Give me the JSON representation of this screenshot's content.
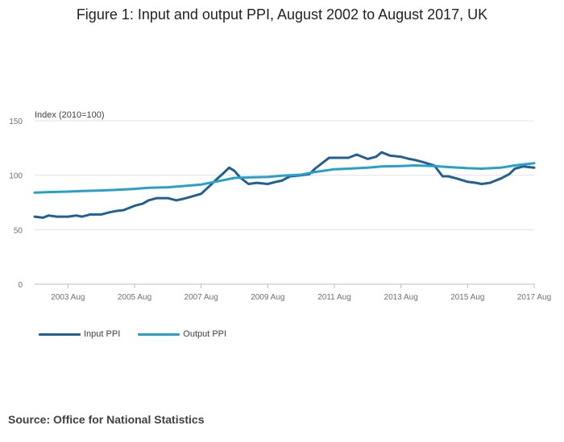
{
  "chart_data": {
    "type": "line",
    "title": "Figure 1: Input and output PPI, August 2002 to August 2017, UK",
    "ylabel": "Index (2010=100)",
    "xlabel": "",
    "ylim": [
      0,
      150
    ],
    "yticks": [
      0,
      50,
      100,
      150
    ],
    "xlim": [
      2002.58,
      2017.58
    ],
    "xticks": [
      {
        "value": 2003.58,
        "label": "2003 Aug"
      },
      {
        "value": 2005.58,
        "label": "2005 Aug"
      },
      {
        "value": 2007.58,
        "label": "2007 Aug"
      },
      {
        "value": 2009.58,
        "label": "2009 Aug"
      },
      {
        "value": 2011.58,
        "label": "2011 Aug"
      },
      {
        "value": 2013.58,
        "label": "2013 Aug"
      },
      {
        "value": 2015.58,
        "label": "2015 Aug"
      },
      {
        "value": 2017.58,
        "label": "2017 Aug"
      }
    ],
    "grid": true,
    "legend_position": "bottom-left",
    "series": [
      {
        "name": "Input PPI",
        "color": "#206095",
        "x": [
          2002.58,
          2002.83,
          2003.0,
          2003.25,
          2003.58,
          2003.83,
          2004.0,
          2004.25,
          2004.58,
          2004.83,
          2005.0,
          2005.25,
          2005.58,
          2005.83,
          2006.0,
          2006.25,
          2006.58,
          2006.83,
          2007.0,
          2007.25,
          2007.58,
          2007.83,
          2008.0,
          2008.25,
          2008.42,
          2008.58,
          2008.75,
          2009.0,
          2009.25,
          2009.58,
          2009.83,
          2010.0,
          2010.25,
          2010.58,
          2010.83,
          2011.0,
          2011.25,
          2011.42,
          2011.58,
          2011.83,
          2012.0,
          2012.25,
          2012.58,
          2012.83,
          2013.0,
          2013.25,
          2013.58,
          2013.83,
          2014.0,
          2014.25,
          2014.58,
          2014.83,
          2015.0,
          2015.25,
          2015.58,
          2015.83,
          2016.0,
          2016.25,
          2016.58,
          2016.83,
          2017.0,
          2017.25,
          2017.58
        ],
        "values": [
          62,
          61,
          63,
          62,
          62,
          63,
          62,
          64,
          64,
          66,
          67,
          68,
          72,
          74,
          77,
          79,
          79,
          77,
          78,
          80,
          83,
          90,
          95,
          102,
          107,
          104,
          98,
          92,
          93,
          92,
          94,
          95,
          99,
          100,
          101,
          106,
          112,
          116,
          116,
          116,
          116,
          119,
          115,
          117,
          121,
          118,
          117,
          115,
          114,
          112,
          109,
          99,
          99,
          97,
          94,
          93,
          92,
          93,
          97,
          101,
          106,
          108,
          107
        ]
      },
      {
        "name": "Output PPI",
        "color": "#27a0cc",
        "x": [
          2002.58,
          2003.0,
          2003.58,
          2004.0,
          2004.58,
          2005.0,
          2005.58,
          2006.0,
          2006.58,
          2007.0,
          2007.58,
          2008.0,
          2008.58,
          2009.0,
          2009.58,
          2010.0,
          2010.58,
          2011.0,
          2011.58,
          2012.0,
          2012.58,
          2013.0,
          2013.58,
          2014.0,
          2014.58,
          2015.0,
          2015.58,
          2016.0,
          2016.58,
          2017.0,
          2017.58
        ],
        "values": [
          84,
          84.5,
          85,
          85.5,
          86,
          86.5,
          87.5,
          88.5,
          89,
          90,
          91.5,
          94,
          97.5,
          98,
          98.5,
          99.5,
          100.5,
          103,
          105.5,
          106,
          107,
          108,
          108.5,
          109,
          108.5,
          107.5,
          106.5,
          106,
          107,
          109,
          111
        ]
      }
    ]
  },
  "source_text": "Source: Office for National Statistics"
}
